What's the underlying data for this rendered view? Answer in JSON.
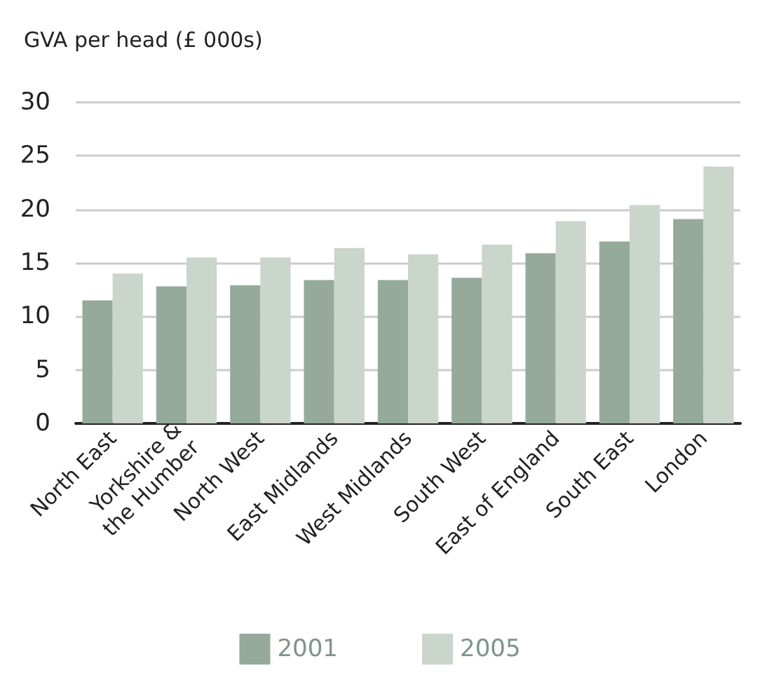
{
  "chart_data": {
    "type": "bar",
    "ylabel": "GVA per head (£ 000s)",
    "categories": [
      "North East",
      "Yorkshire &\nthe Humber",
      "North West",
      "East Midlands",
      "West Midlands",
      "South West",
      "East of England",
      "South East",
      "London"
    ],
    "series": [
      {
        "name": "2001",
        "color": "#96aa9c",
        "values": [
          11.5,
          12.8,
          12.9,
          13.4,
          13.4,
          13.6,
          15.9,
          17.0,
          19.1
        ]
      },
      {
        "name": "2005",
        "color": "#cad5cc",
        "values": [
          14.0,
          15.5,
          15.5,
          16.4,
          15.8,
          16.7,
          18.9,
          20.4,
          24.0
        ]
      }
    ],
    "ylim": [
      0,
      30
    ],
    "yticks": [
      0,
      5,
      10,
      15,
      20,
      25,
      30
    ],
    "grid": "y",
    "legend": "bottom"
  }
}
